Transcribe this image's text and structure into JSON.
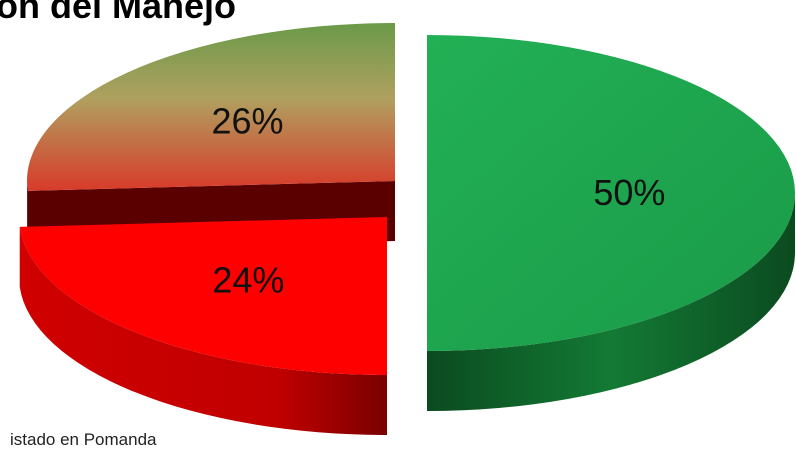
{
  "chart_data": {
    "type": "pie",
    "title": "ón del Manejo",
    "slices": [
      {
        "label": "50%",
        "value": 50,
        "color": "#1fa84f",
        "side_color": "#0e5a27"
      },
      {
        "label": "24%",
        "value": 24,
        "color": "#ff0000",
        "side_color": "#9c0000"
      },
      {
        "label": "26%",
        "value": 26,
        "color": "#b84a3a",
        "color_top": "#6a9a48",
        "side_color": "#5a0000"
      }
    ],
    "exploded": true,
    "three_d": true,
    "legend": "none"
  },
  "footer": {
    "note": "istado en Pomanda"
  }
}
